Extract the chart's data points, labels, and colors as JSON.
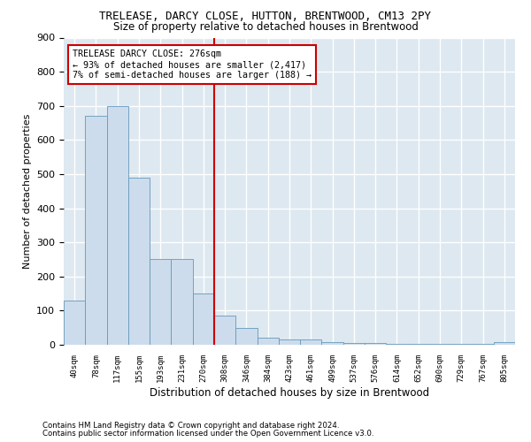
{
  "title1": "TRELEASE, DARCY CLOSE, HUTTON, BRENTWOOD, CM13 2PY",
  "title2": "Size of property relative to detached houses in Brentwood",
  "xlabel": "Distribution of detached houses by size in Brentwood",
  "ylabel": "Number of detached properties",
  "bar_color": "#ccdcec",
  "bar_edge_color": "#6699bb",
  "background_color": "#dde8f0",
  "grid_color": "#ffffff",
  "bins": [
    "40sqm",
    "78sqm",
    "117sqm",
    "155sqm",
    "193sqm",
    "231sqm",
    "270sqm",
    "308sqm",
    "346sqm",
    "384sqm",
    "423sqm",
    "461sqm",
    "499sqm",
    "537sqm",
    "576sqm",
    "614sqm",
    "652sqm",
    "690sqm",
    "729sqm",
    "767sqm",
    "805sqm"
  ],
  "bar_heights": [
    130,
    670,
    700,
    490,
    250,
    250,
    150,
    85,
    48,
    22,
    15,
    15,
    8,
    5,
    5,
    2,
    2,
    2,
    2,
    2,
    8
  ],
  "vline_color": "#cc0000",
  "annotation_title": "TRELEASE DARCY CLOSE: 276sqm",
  "annotation_line1": "← 93% of detached houses are smaller (2,417)",
  "annotation_line2": "7% of semi-detached houses are larger (188) →",
  "annotation_box_color": "#cc0000",
  "ylim": [
    0,
    900
  ],
  "yticks": [
    0,
    100,
    200,
    300,
    400,
    500,
    600,
    700,
    800,
    900
  ],
  "footer1": "Contains HM Land Registry data © Crown copyright and database right 2024.",
  "footer2": "Contains public sector information licensed under the Open Government Licence v3.0."
}
